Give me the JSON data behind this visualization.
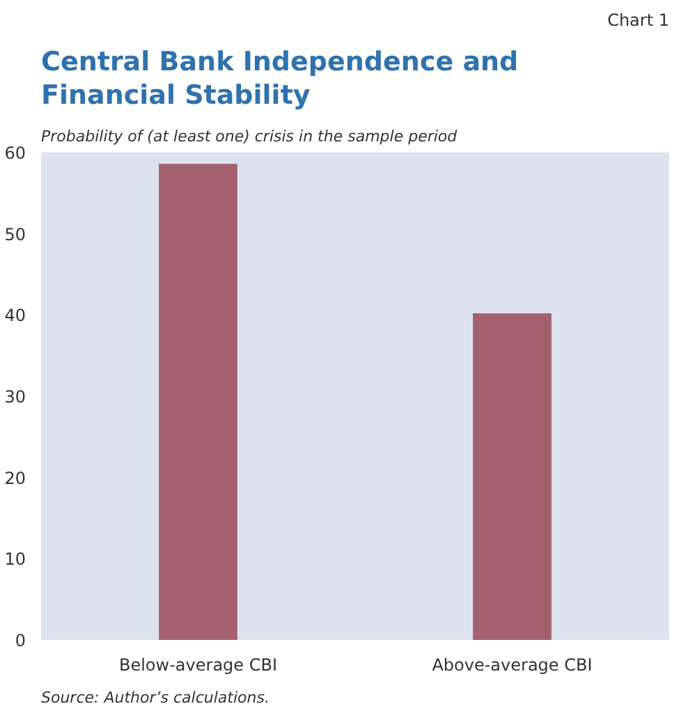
{
  "chart_data": {
    "type": "bar",
    "title": "Central Bank Independence and Financial Stability",
    "subtitle": "Probability of (at least one) crisis in the sample period",
    "categories": [
      "Below-average CBI",
      "Above-average CBI"
    ],
    "values": [
      58.6,
      40.2
    ],
    "color": "#a5606f",
    "ylim": [
      0,
      60
    ],
    "yticks": [
      0,
      10,
      20,
      30,
      40,
      50,
      60
    ],
    "grid": false,
    "annotations": [
      "Chart 1",
      "Source: Author’s calculations."
    ]
  }
}
